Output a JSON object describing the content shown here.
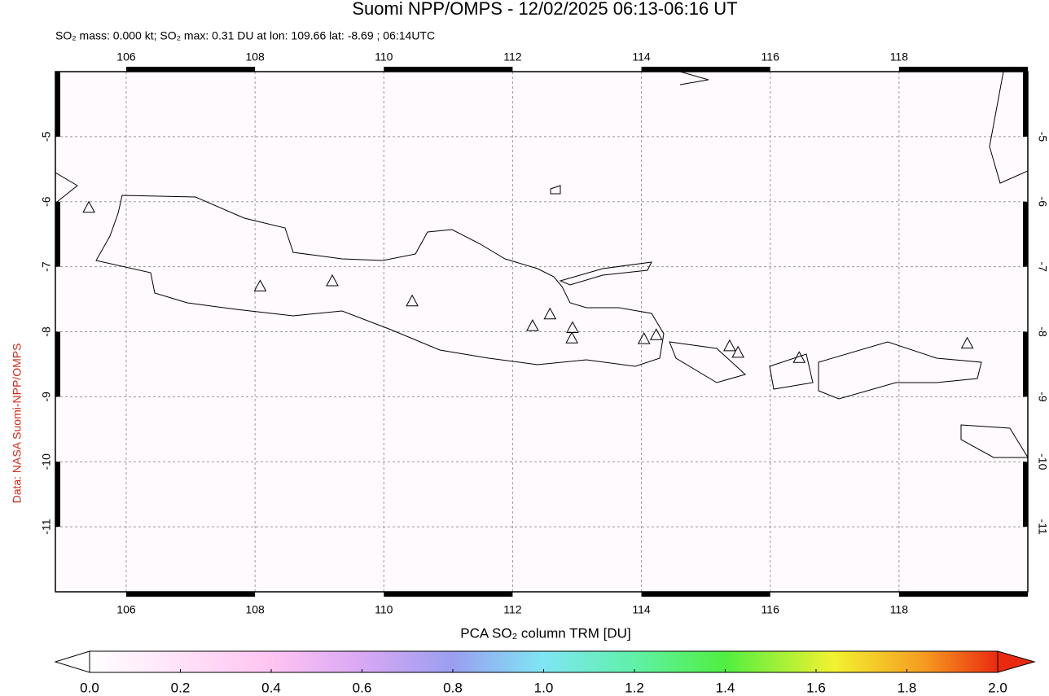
{
  "header": {
    "title": "Suomi NPP/OMPS - 12/02/2025 06:13-06:16 UT",
    "subtitle": "SO₂ mass: 0.000 kt; SO₂ max: 0.31 DU at lon: 109.66 lat: -8.69 ; 06:14UTC"
  },
  "map": {
    "xlim": [
      104.9,
      120
    ],
    "ylim": [
      -12,
      -4
    ],
    "xticks": [
      106,
      108,
      110,
      112,
      114,
      116,
      118
    ],
    "yticks": [
      -5,
      -6,
      -7,
      -8,
      -9,
      -10,
      -11
    ],
    "grid": true,
    "volcanoes": {
      "lon": [
        105.42,
        108.08,
        109.2,
        110.44,
        112.31,
        112.58,
        112.93,
        112.92,
        114.04,
        114.23,
        115.37,
        115.5,
        116.45,
        119.06
      ],
      "lat": [
        -6.1,
        -7.31,
        -7.23,
        -7.54,
        -7.92,
        -7.74,
        -7.95,
        -8.11,
        -8.12,
        -8.06,
        -8.23,
        -8.33,
        -8.41,
        -8.19
      ]
    }
  },
  "colorbar": {
    "label": "PCA SO₂ column TRM [DU]",
    "range": [
      0,
      2
    ],
    "ticks": [
      {
        "value": 0,
        "label": "0.0"
      },
      {
        "value": 0.2,
        "label": "0.2"
      },
      {
        "value": 0.4,
        "label": "0.4"
      },
      {
        "value": 0.6,
        "label": "0.6"
      },
      {
        "value": 0.8,
        "label": "0.8"
      },
      {
        "value": 1,
        "label": "1.0"
      },
      {
        "value": 1.2,
        "label": "1.2"
      },
      {
        "value": 1.4,
        "label": "1.4"
      },
      {
        "value": 1.6,
        "label": "1.6"
      },
      {
        "value": 1.8,
        "label": "1.8"
      },
      {
        "value": 2,
        "label": "2.0"
      }
    ]
  },
  "credit": "Data: NASA Suomi-NPP/OMPS"
}
